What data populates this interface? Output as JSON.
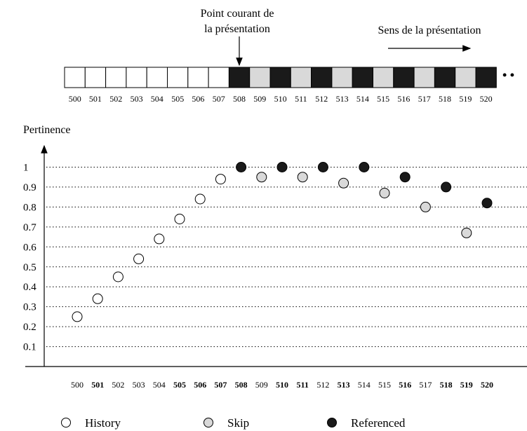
{
  "annotations": {
    "current_point_line1": "Point courant de",
    "current_point_line2": "la présentation",
    "direction": "Sens de la présentation",
    "ellipsis": "• •"
  },
  "colors": {
    "history": "#ffffff",
    "skip": "#d9d9d9",
    "referenced": "#1a1a1a",
    "grid": "#000000"
  },
  "timeline": {
    "blocks": [
      {
        "id": "500",
        "kind": "history"
      },
      {
        "id": "501",
        "kind": "history"
      },
      {
        "id": "502",
        "kind": "history"
      },
      {
        "id": "503",
        "kind": "history"
      },
      {
        "id": "504",
        "kind": "history"
      },
      {
        "id": "505",
        "kind": "history"
      },
      {
        "id": "506",
        "kind": "history"
      },
      {
        "id": "507",
        "kind": "history"
      },
      {
        "id": "508",
        "kind": "referenced"
      },
      {
        "id": "509",
        "kind": "skip"
      },
      {
        "id": "510",
        "kind": "referenced"
      },
      {
        "id": "511",
        "kind": "skip"
      },
      {
        "id": "512",
        "kind": "referenced"
      },
      {
        "id": "513",
        "kind": "skip"
      },
      {
        "id": "514",
        "kind": "referenced"
      },
      {
        "id": "515",
        "kind": "skip"
      },
      {
        "id": "516",
        "kind": "referenced"
      },
      {
        "id": "517",
        "kind": "skip"
      },
      {
        "id": "518",
        "kind": "referenced"
      },
      {
        "id": "519",
        "kind": "skip"
      },
      {
        "id": "520",
        "kind": "referenced"
      }
    ],
    "current_block": "508"
  },
  "chart_data": {
    "type": "scatter",
    "title": "",
    "ylabel": "Pertinence",
    "xlabel": "",
    "ylim": [
      0,
      1
    ],
    "y_ticks": [
      "0.1",
      "0.2",
      "0.3",
      "0.4",
      "0.5",
      "0.6",
      "0.7",
      "0.8",
      "0.9",
      "1"
    ],
    "grid": "horizontal dotted",
    "legend_position": "bottom",
    "categories": [
      {
        "label": "500",
        "bold": false
      },
      {
        "label": "501",
        "bold": true
      },
      {
        "label": "502",
        "bold": false
      },
      {
        "label": "503",
        "bold": false
      },
      {
        "label": "504",
        "bold": false
      },
      {
        "label": "505",
        "bold": true
      },
      {
        "label": "506",
        "bold": true
      },
      {
        "label": "507",
        "bold": true
      },
      {
        "label": "508",
        "bold": true
      },
      {
        "label": "509",
        "bold": false
      },
      {
        "label": "510",
        "bold": true
      },
      {
        "label": "511",
        "bold": true
      },
      {
        "label": "512",
        "bold": false
      },
      {
        "label": "513",
        "bold": true
      },
      {
        "label": "514",
        "bold": false
      },
      {
        "label": "515",
        "bold": false
      },
      {
        "label": "516",
        "bold": true
      },
      {
        "label": "517",
        "bold": false
      },
      {
        "label": "518",
        "bold": true
      },
      {
        "label": "519",
        "bold": true
      },
      {
        "label": "520",
        "bold": true
      }
    ],
    "series": [
      {
        "name": "History",
        "kind": "history",
        "points": [
          {
            "x": "500",
            "y": 0.25
          },
          {
            "x": "501",
            "y": 0.34
          },
          {
            "x": "502",
            "y": 0.45
          },
          {
            "x": "503",
            "y": 0.54
          },
          {
            "x": "504",
            "y": 0.64
          },
          {
            "x": "505",
            "y": 0.74
          },
          {
            "x": "506",
            "y": 0.84
          },
          {
            "x": "507",
            "y": 0.94
          }
        ]
      },
      {
        "name": "Skip",
        "kind": "skip",
        "points": [
          {
            "x": "509",
            "y": 0.95
          },
          {
            "x": "511",
            "y": 0.95
          },
          {
            "x": "513",
            "y": 0.92
          },
          {
            "x": "515",
            "y": 0.87
          },
          {
            "x": "517",
            "y": 0.8
          },
          {
            "x": "519",
            "y": 0.67
          }
        ]
      },
      {
        "name": "Referenced",
        "kind": "referenced",
        "points": [
          {
            "x": "508",
            "y": 1.0
          },
          {
            "x": "510",
            "y": 1.0
          },
          {
            "x": "512",
            "y": 1.0
          },
          {
            "x": "514",
            "y": 1.0
          },
          {
            "x": "516",
            "y": 0.95
          },
          {
            "x": "518",
            "y": 0.9
          },
          {
            "x": "520",
            "y": 0.82
          }
        ]
      }
    ]
  }
}
